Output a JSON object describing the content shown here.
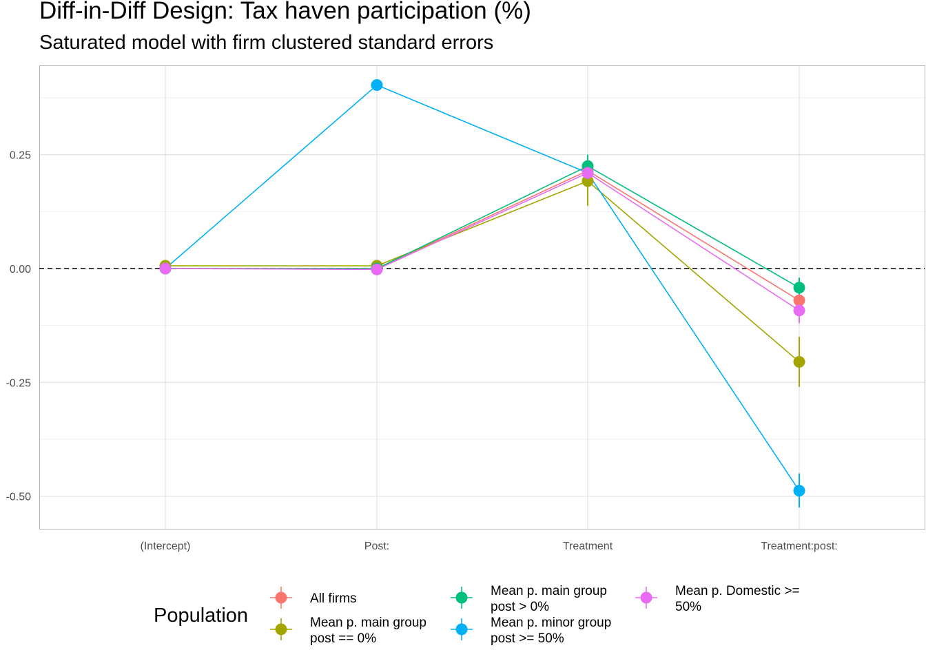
{
  "chart_data": {
    "type": "line",
    "title": "Diff-in-Diff Design: Tax haven participation (%)",
    "subtitle": "Saturated model with firm clustered standard errors",
    "xlabel": "",
    "ylabel": "",
    "categories": [
      "(Intercept)",
      "Post:",
      "Treatment",
      "Treatment:post:"
    ],
    "yticks": [
      -0.5,
      -0.25,
      0.0,
      0.25
    ],
    "ytick_labels": [
      "-0.50",
      "-0.25",
      "0.00",
      "0.25"
    ],
    "ylim": [
      -0.57,
      0.45
    ],
    "reference_line": 0,
    "grid": true,
    "legend": {
      "title": "Population",
      "placement": "bottom",
      "columns": [
        [
          0,
          1
        ],
        [
          2,
          3
        ],
        [
          4
        ]
      ]
    },
    "series": [
      {
        "name": "All firms",
        "label_lines": [
          "All firms"
        ],
        "color": "#F8766D",
        "values": [
          0.0,
          0.0,
          0.215,
          -0.07
        ],
        "ci": [
          [
            -0.003,
            0.003
          ],
          [
            -0.003,
            0.003
          ],
          [
            0.195,
            0.235
          ],
          [
            -0.085,
            -0.055
          ]
        ]
      },
      {
        "name": "Mean p. main group post == 0%",
        "label_lines": [
          "Mean p. main group",
          "post == 0%"
        ],
        "color": "#A3A500",
        "values": [
          0.006,
          0.006,
          0.192,
          -0.205
        ],
        "ci": [
          [
            0.001,
            0.011
          ],
          [
            0.001,
            0.011
          ],
          [
            0.138,
            0.246
          ],
          [
            -0.26,
            -0.15
          ]
        ]
      },
      {
        "name": "Mean p. main group post > 0%",
        "label_lines": [
          "Mean p. main group",
          "post > 0%"
        ],
        "color": "#00BF7D",
        "values": [
          0.0,
          0.0,
          0.225,
          -0.042
        ],
        "ci": [
          [
            -0.003,
            0.003
          ],
          [
            -0.003,
            0.003
          ],
          [
            0.2,
            0.25
          ],
          [
            -0.065,
            -0.02
          ]
        ]
      },
      {
        "name": "Mean p. minor group post >= 50%",
        "label_lines": [
          "Mean p. minor group",
          "post >= 50%"
        ],
        "color": "#00B0F6",
        "values": [
          0.0,
          0.403,
          0.21,
          -0.488
        ],
        "ci": [
          [
            -0.003,
            0.003
          ],
          [
            0.398,
            0.408
          ],
          [
            0.19,
            0.23
          ],
          [
            -0.525,
            -0.45
          ]
        ]
      },
      {
        "name": "Mean p. Domestic >= 50%",
        "label_lines": [
          "Mean p. Domestic >=",
          "50%"
        ],
        "color": "#E76BF3",
        "values": [
          0.0,
          -0.002,
          0.21,
          -0.092
        ],
        "ci": [
          [
            -0.005,
            0.005
          ],
          [
            -0.006,
            0.002
          ],
          [
            0.19,
            0.23
          ],
          [
            -0.12,
            -0.07
          ]
        ]
      }
    ]
  }
}
